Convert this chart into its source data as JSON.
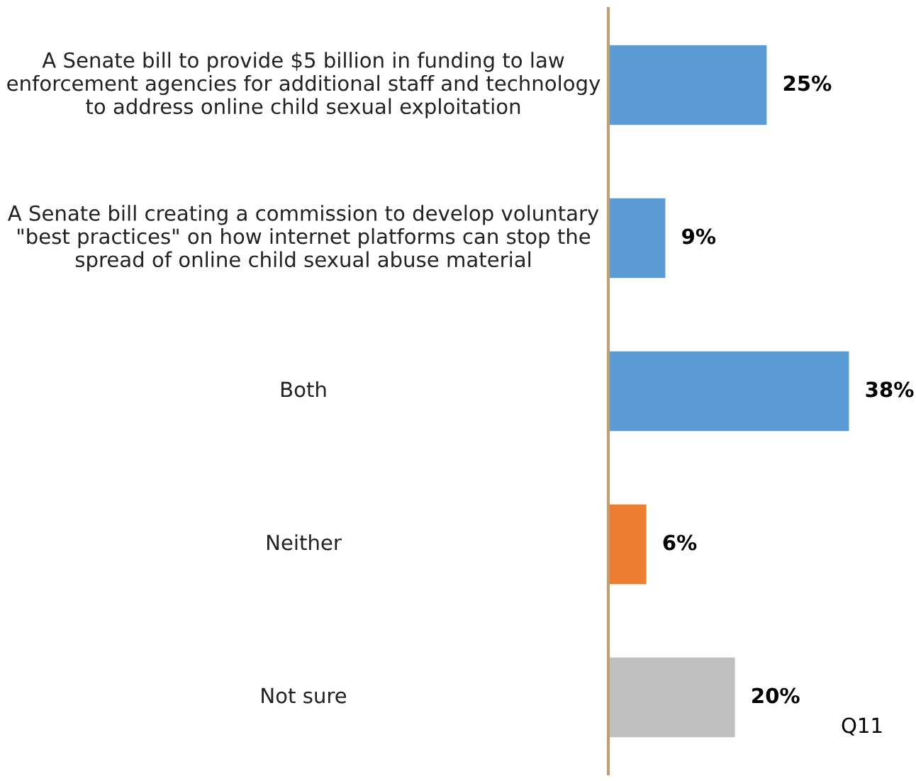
{
  "chart_data": {
    "type": "bar",
    "orientation": "horizontal",
    "categories": [
      "A Senate bill to provide $5 billion in funding to law enforcement agencies for additional staff and technology to address online child sexual exploitation",
      "A Senate bill creating a commission to develop voluntary \"best practices\" on how internet platforms can stop the spread of online child sexual abuse material",
      "Both",
      "Neither",
      "Not sure"
    ],
    "values": [
      25,
      9,
      38,
      6,
      20
    ],
    "value_labels": [
      "25%",
      "9%",
      "38%",
      "6%",
      "20%"
    ],
    "colors": [
      "#5b9bd5",
      "#5b9bd5",
      "#5b9bd5",
      "#ed7d31",
      "#bfbfbf"
    ],
    "annotations": [
      "Q11"
    ]
  }
}
